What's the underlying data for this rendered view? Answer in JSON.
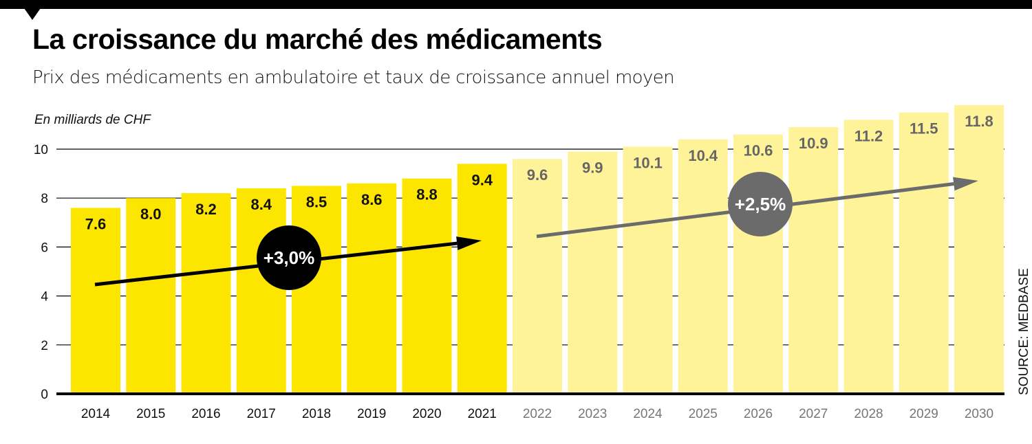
{
  "title": "La croissance du marché des médicaments",
  "subtitle": "Prix des médicaments en ambulatoire et taux de croissance annuel moyen",
  "source": "SOURCE: MEDBASE",
  "colors": {
    "actual": "#FCE600",
    "forecast": "#FFF39A",
    "actual_label": "#111111",
    "forecast_label": "#666666",
    "arrow_actual": "#000000",
    "arrow_forecast": "#6B6B6B"
  },
  "chart_data": {
    "type": "bar",
    "title": "La croissance du marché des médicaments",
    "ylabel": "En milliards de CHF",
    "ylim": [
      0,
      12
    ],
    "yticks": [
      "0",
      "2",
      "4",
      "6",
      "8",
      "10"
    ],
    "grid": true,
    "categories": [
      "2014",
      "2015",
      "2016",
      "2017",
      "2018",
      "2019",
      "2020",
      "2021",
      "2022",
      "2023",
      "2024",
      "2025",
      "2026",
      "2027",
      "2028",
      "2029",
      "2030"
    ],
    "values": [
      7.6,
      8.0,
      8.2,
      8.4,
      8.5,
      8.6,
      8.8,
      9.4,
      9.6,
      9.9,
      10.1,
      10.4,
      10.6,
      10.9,
      11.2,
      11.5,
      11.8
    ],
    "value_labels": [
      "7.6",
      "8.0",
      "8.2",
      "8.4",
      "8.5",
      "8.6",
      "8.8",
      "9.4",
      "9.6",
      "9.9",
      "10.1",
      "10.4",
      "10.6",
      "10.9",
      "11.2",
      "11.5",
      "11.8"
    ],
    "forecast_from": "2022",
    "annotations": [
      {
        "label": "+3,0%",
        "period": "2014–2021"
      },
      {
        "label": "+2,5%",
        "period": "2022–2030"
      }
    ]
  }
}
